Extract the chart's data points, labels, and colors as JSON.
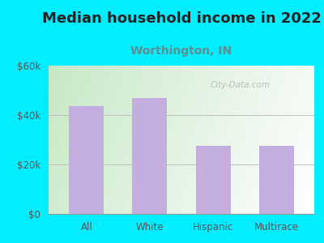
{
  "title": "Median household income in 2022",
  "subtitle": "Worthington, IN",
  "categories": [
    "All",
    "White",
    "Hispanic",
    "Multirace"
  ],
  "values": [
    43500,
    47000,
    27500,
    27500
  ],
  "bar_color": "#c4aee0",
  "title_fontsize": 13,
  "subtitle_fontsize": 10,
  "title_color": "#222222",
  "subtitle_color": "#5a9090",
  "tick_label_color": "#555555",
  "background_outer": "#00eeff",
  "ylim": [
    0,
    60000
  ],
  "yticks": [
    0,
    20000,
    40000,
    60000
  ],
  "ytick_labels": [
    "$0",
    "$20k",
    "$40k",
    "$60k"
  ],
  "watermark": "City-Data.com",
  "grid_color": "#bbbbbb",
  "plot_bg_left": "#d0e8c8",
  "plot_bg_right": "#f0f8f0"
}
